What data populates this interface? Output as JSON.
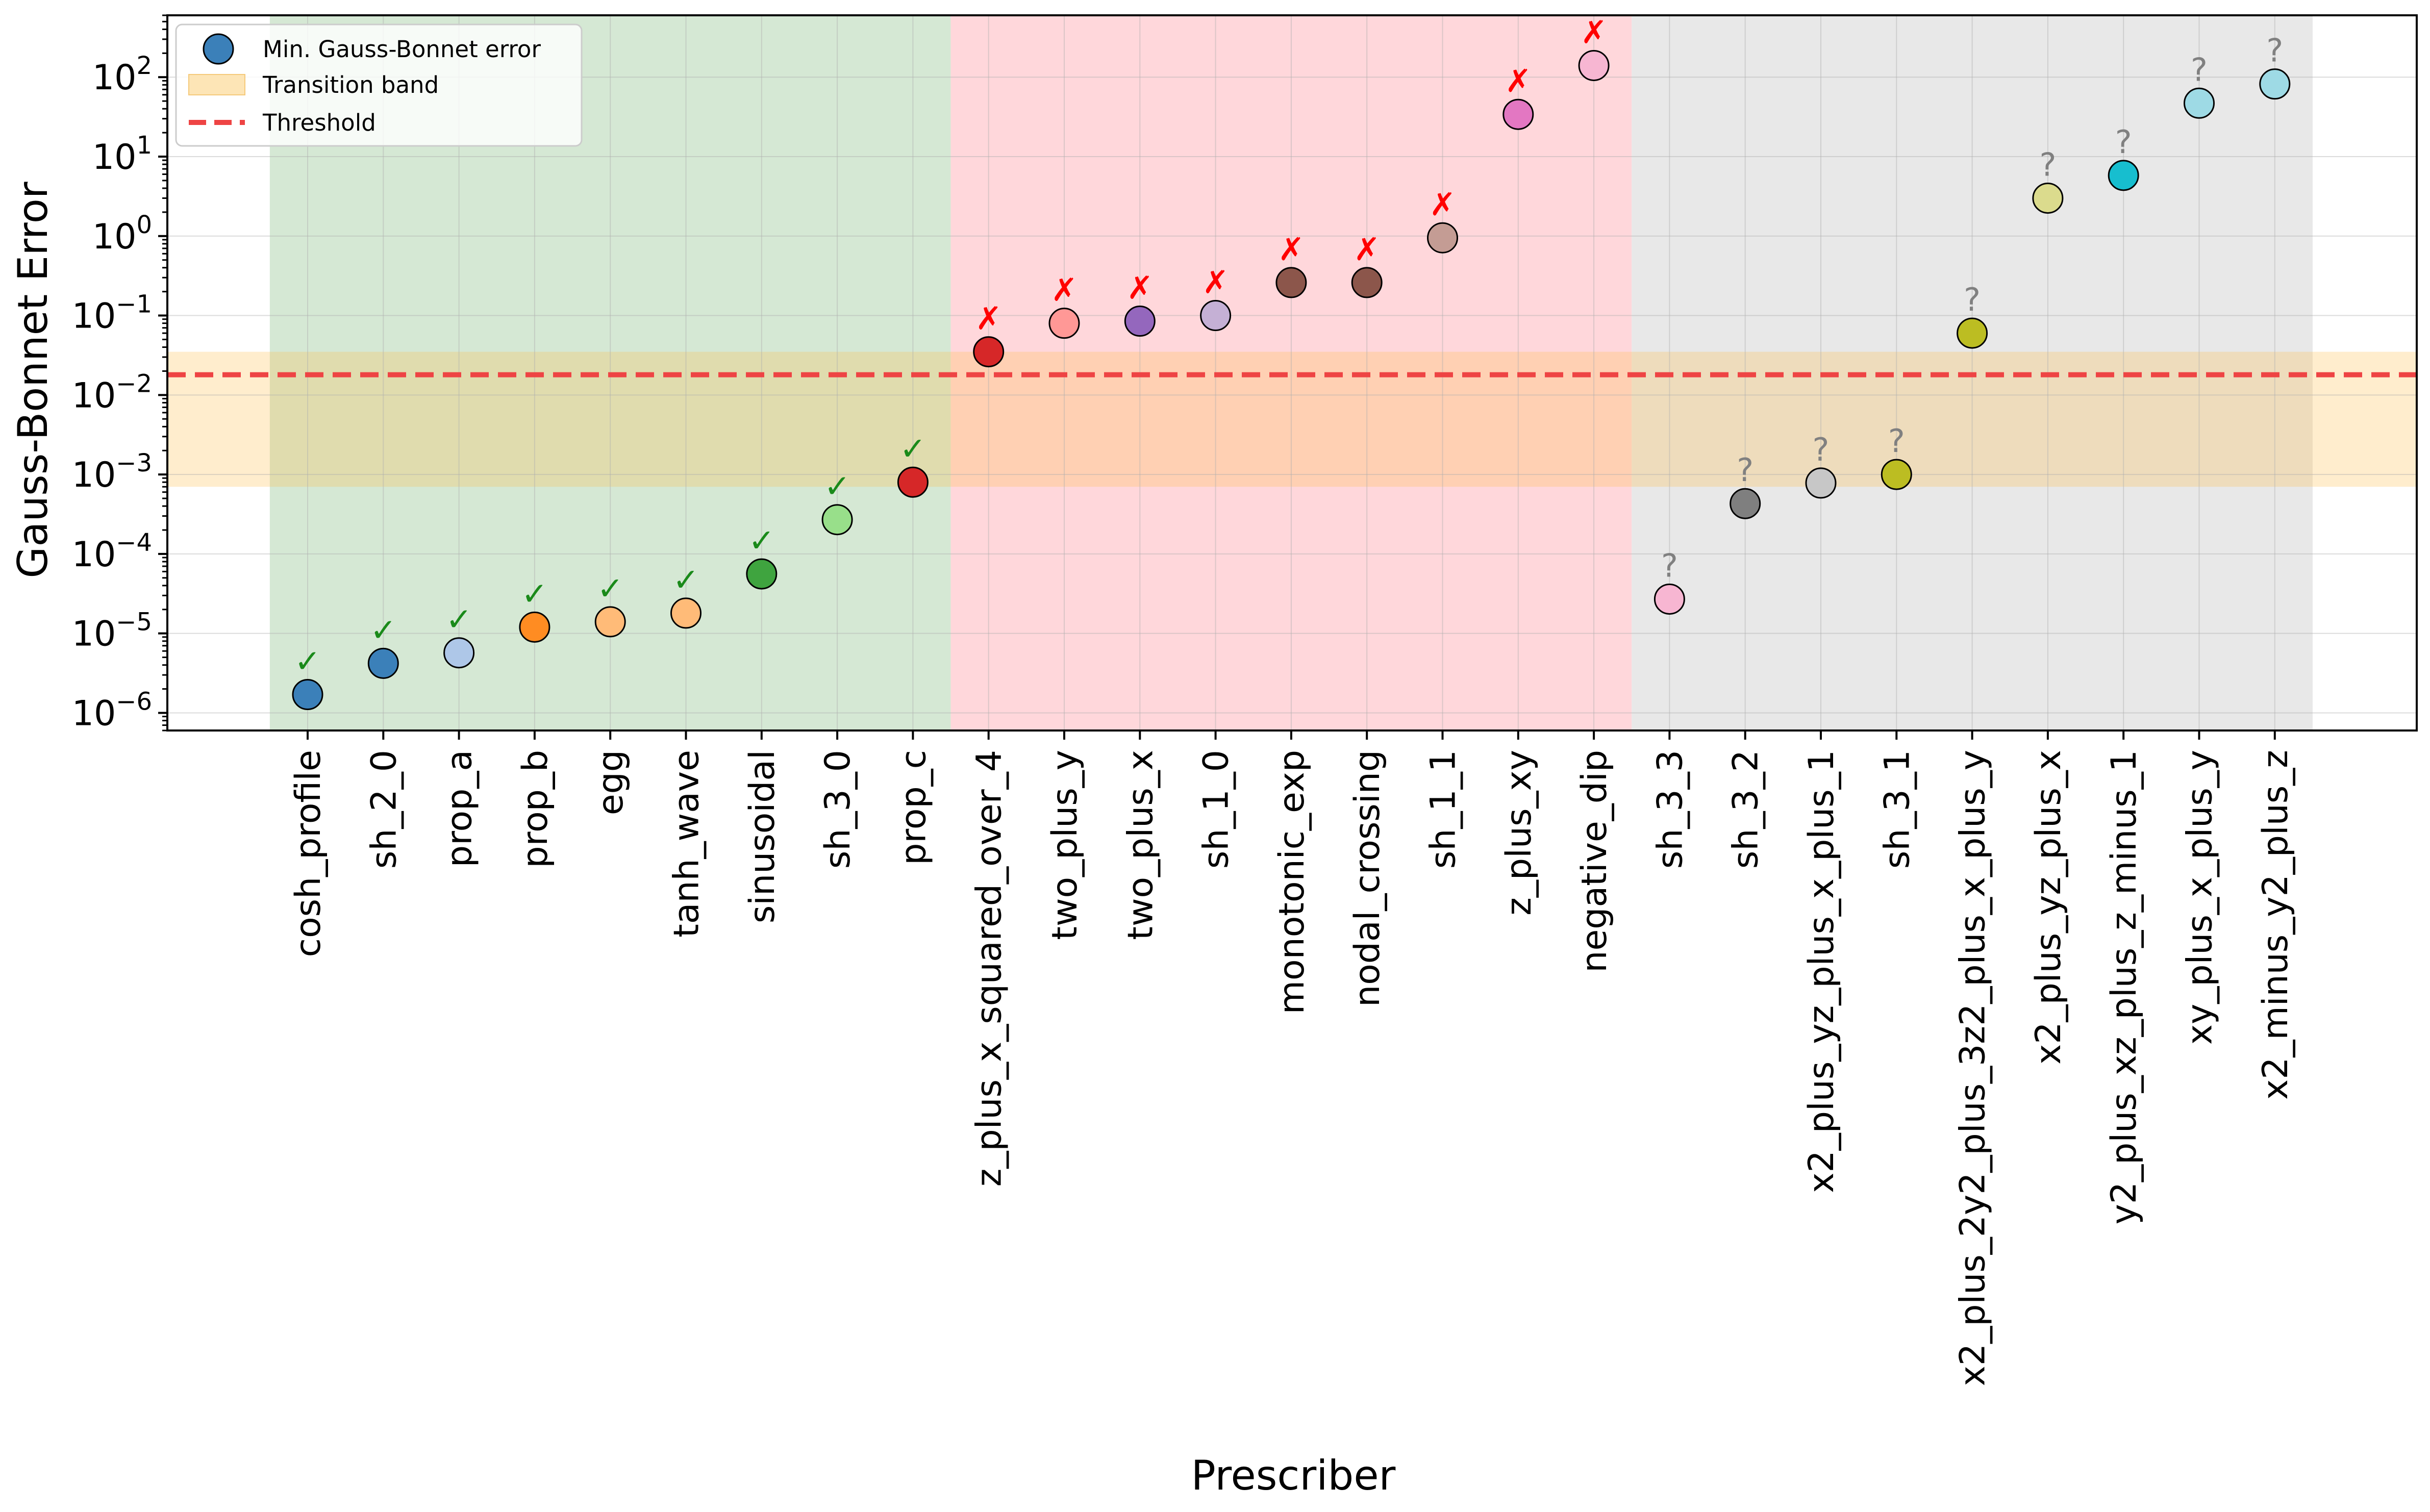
{
  "chart_data": {
    "type": "scatter",
    "title": "",
    "xlabel": "Prescriber",
    "ylabel": "Gauss-Bonnet Error",
    "yscale": "log",
    "ylim": [
      6e-07,
      600
    ],
    "ytick_exponents": [
      -6,
      -5,
      -4,
      -3,
      -2,
      -1,
      0,
      1,
      2
    ],
    "ytick_base": "10",
    "grid": true,
    "legend": {
      "placement": "top-left",
      "entries": [
        "Min. Gauss-Bonnet error",
        "Transition band",
        "Threshold"
      ]
    },
    "threshold": 0.018,
    "transition_band": [
      0.0007,
      0.035
    ],
    "regions": [
      {
        "name": "pass",
        "from": 0,
        "to": 8,
        "color": "#d5e8d4"
      },
      {
        "name": "fail",
        "from": 9,
        "to": 17,
        "color": "#ffd7db"
      },
      {
        "name": "unknown",
        "from": 18,
        "to": 26,
        "color": "#e8e8e8"
      }
    ],
    "marker_symbols": {
      "pass": "✓",
      "fail": "✗",
      "unknown": "?"
    },
    "marker_colors": {
      "pass": "#1a8a1a",
      "fail": "#ff0000",
      "unknown": "#808080"
    },
    "points": [
      {
        "label": "cosh_profile",
        "value": 1.7e-06,
        "status": "pass",
        "color": "#3b80b9"
      },
      {
        "label": "sh_2_0",
        "value": 4.2e-06,
        "status": "pass",
        "color": "#3b80b9"
      },
      {
        "label": "prop_a",
        "value": 5.7e-06,
        "status": "pass",
        "color": "#aec7e8"
      },
      {
        "label": "prop_b",
        "value": 1.2e-05,
        "status": "pass",
        "color": "#ff8c22"
      },
      {
        "label": "egg",
        "value": 1.4e-05,
        "status": "pass",
        "color": "#ffbb78"
      },
      {
        "label": "tanh_wave",
        "value": 1.8e-05,
        "status": "pass",
        "color": "#ffbb78"
      },
      {
        "label": "sinusoidal",
        "value": 5.6e-05,
        "status": "pass",
        "color": "#3fa43f"
      },
      {
        "label": "sh_3_0",
        "value": 0.00027,
        "status": "pass",
        "color": "#98df8a"
      },
      {
        "label": "prop_c",
        "value": 0.0008,
        "status": "pass",
        "color": "#d62728"
      },
      {
        "label": "z_plus_x_squared_over_4",
        "value": 0.035,
        "status": "fail",
        "color": "#d62728"
      },
      {
        "label": "two_plus_y",
        "value": 0.08,
        "status": "fail",
        "color": "#ff9896"
      },
      {
        "label": "two_plus_x",
        "value": 0.085,
        "status": "fail",
        "color": "#9467bd"
      },
      {
        "label": "sh_1_0",
        "value": 0.1,
        "status": "fail",
        "color": "#c5b0d5"
      },
      {
        "label": "monotonic_exp",
        "value": 0.26,
        "status": "fail",
        "color": "#8c564b"
      },
      {
        "label": "nodal_crossing",
        "value": 0.26,
        "status": "fail",
        "color": "#8c564b"
      },
      {
        "label": "sh_1_1",
        "value": 0.95,
        "status": "fail",
        "color": "#c49c94"
      },
      {
        "label": "z_plus_xy",
        "value": 34,
        "status": "fail",
        "color": "#e377c2"
      },
      {
        "label": "negative_dip",
        "value": 140,
        "status": "fail",
        "color": "#f7b6d2"
      },
      {
        "label": "sh_3_3",
        "value": 2.7e-05,
        "status": "unknown",
        "color": "#f7b6d2"
      },
      {
        "label": "sh_3_2",
        "value": 0.00043,
        "status": "unknown",
        "color": "#7f7f7f"
      },
      {
        "label": "x2_plus_yz_plus_x_plus_1",
        "value": 0.00078,
        "status": "unknown",
        "color": "#c7c7c7"
      },
      {
        "label": "sh_3_1",
        "value": 0.001,
        "status": "unknown",
        "color": "#bcbd22"
      },
      {
        "label": "x2_plus_2y2_plus_3z2_plus_x_plus_y",
        "value": 0.06,
        "status": "unknown",
        "color": "#bcbd22"
      },
      {
        "label": "x2_plus_yz_plus_x",
        "value": 3.0,
        "status": "unknown",
        "color": "#dbdb8d"
      },
      {
        "label": "y2_plus_xz_plus_z_minus_1",
        "value": 5.8,
        "status": "unknown",
        "color": "#17becf"
      },
      {
        "label": "xy_plus_x_plus_y",
        "value": 47,
        "status": "unknown",
        "color": "#9edae5"
      },
      {
        "label": "x2_minus_y2_plus_z",
        "value": 82,
        "status": "unknown",
        "color": "#9edae5"
      }
    ],
    "legend_colors": {
      "marker": "#3b80b9",
      "band": "#fde5b6",
      "threshold": "#ee4444"
    }
  }
}
